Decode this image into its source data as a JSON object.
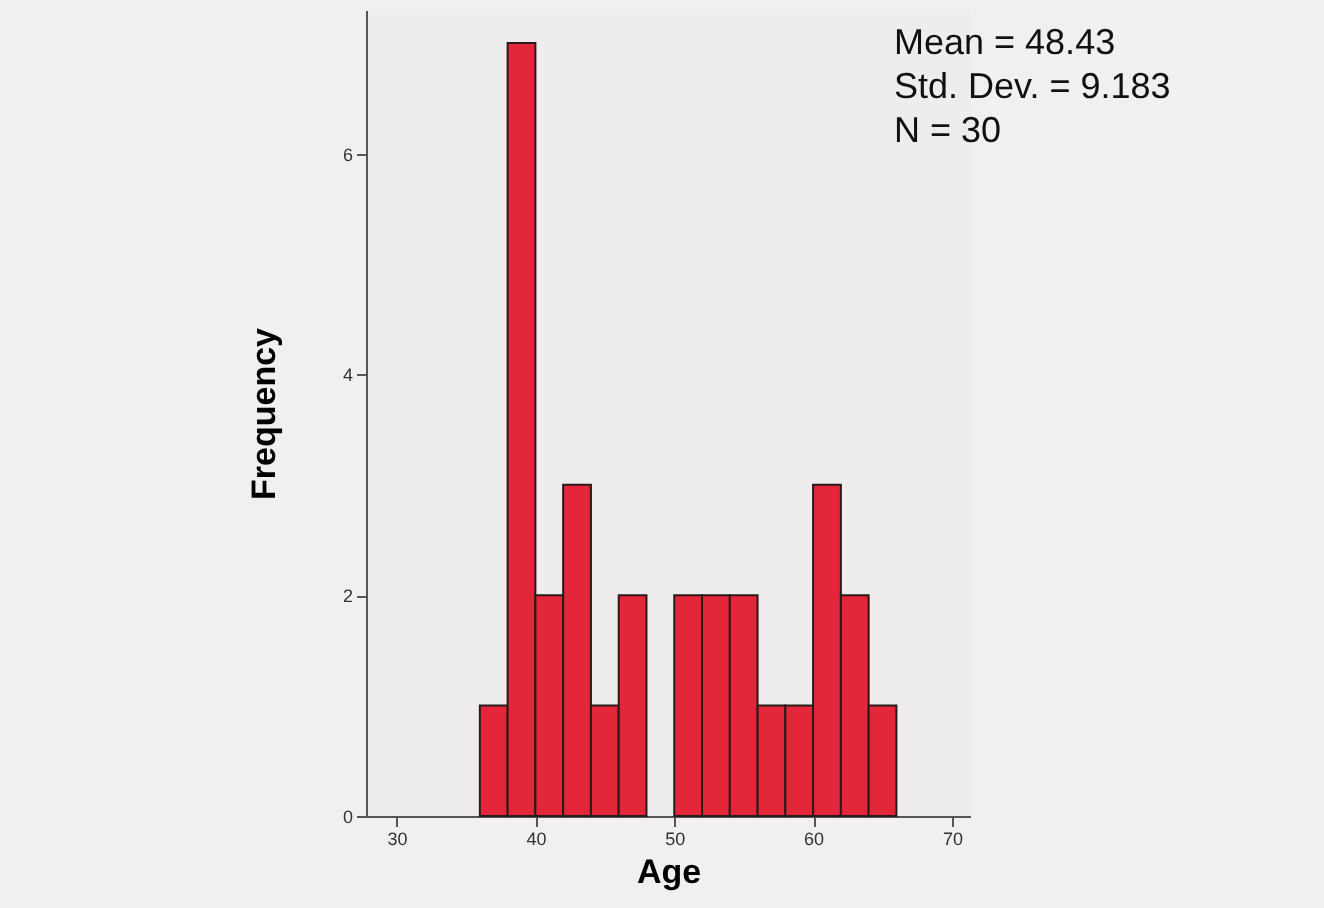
{
  "chart_data": {
    "type": "histogram",
    "xlabel": "Age",
    "ylabel": "Frequency",
    "bins": [
      36,
      38,
      40,
      42,
      44,
      46,
      48,
      50,
      52,
      54,
      56,
      58,
      60,
      62,
      64,
      66
    ],
    "values": [
      1,
      7,
      2,
      3,
      1,
      2,
      0,
      2,
      2,
      2,
      1,
      1,
      3,
      2,
      1
    ],
    "color": "#e3263a",
    "xlim": [
      27.8,
      71.3
    ],
    "xticks": [
      30,
      40,
      50,
      60,
      70
    ],
    "ylim": [
      0,
      7.3
    ],
    "yticks": [
      0,
      2,
      4,
      6
    ],
    "grid": false,
    "annotations": [
      "Mean = 48.43",
      "Std. Dev. = 9.183",
      "N = 30"
    ]
  }
}
